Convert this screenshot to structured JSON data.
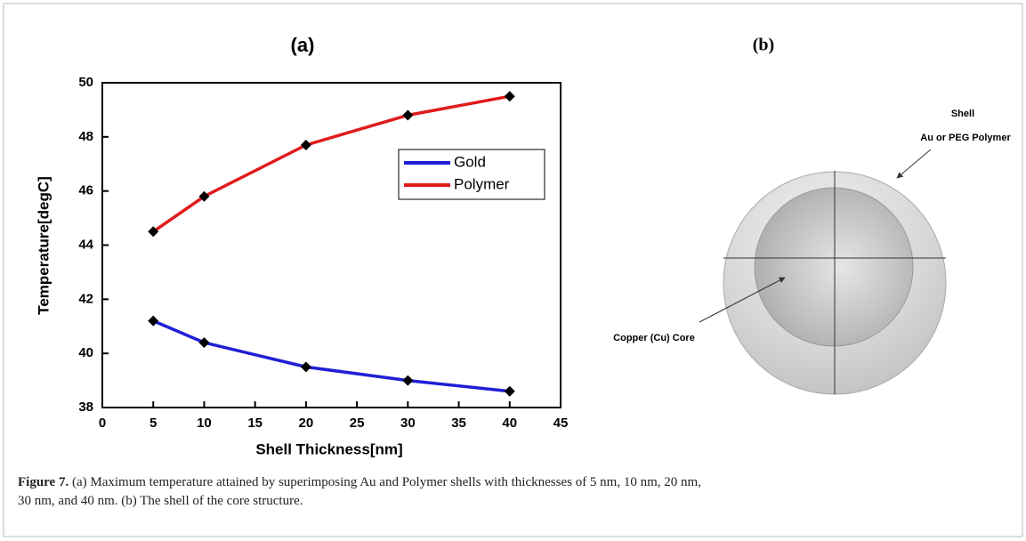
{
  "chart_data": {
    "type": "line",
    "title": "(a)",
    "xlabel": "Shell Thickness[nm]",
    "ylabel": "Temperature[degC]",
    "x": [
      5,
      10,
      20,
      30,
      40
    ],
    "series": [
      {
        "name": "Gold",
        "color": "#1f1fd6",
        "values": [
          41.2,
          40.4,
          39.5,
          39.0,
          38.6
        ]
      },
      {
        "name": "Polymer",
        "color": "#e01b1b",
        "values": [
          44.5,
          45.8,
          47.7,
          48.8,
          49.5
        ]
      }
    ],
    "xlim": [
      0,
      45
    ],
    "xticks": [
      0,
      5,
      10,
      15,
      20,
      25,
      30,
      35,
      40,
      45
    ],
    "ylim": [
      38,
      50
    ],
    "yticks": [
      38,
      40,
      42,
      44,
      46,
      48,
      50
    ],
    "grid": false
  },
  "diagram": {
    "label": "(b)",
    "shell_title": "Shell",
    "shell_material": "Au or PEG Polymer",
    "core_label": "Copper (Cu) Core"
  },
  "caption": {
    "label": "Figure 7.",
    "lines": [
      "(a) Maximum temperature attained by superimposing Au and Polymer shells with thicknesses of 5 nm, 10 nm, 20 nm,",
      "30 nm, and 40 nm. (b) The shell of the core structure."
    ]
  }
}
